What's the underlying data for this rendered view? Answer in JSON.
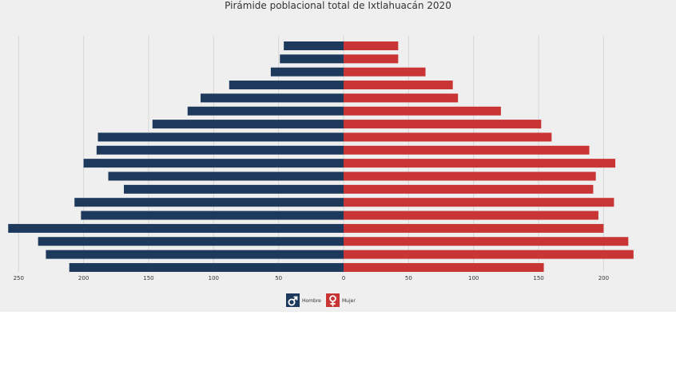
{
  "chart_data": {
    "type": "bar",
    "orientation": "horizontal-diverging",
    "title": "Pirámide poblacional total de Ixtlahuacán 2020",
    "xlim": [
      -260,
      230
    ],
    "x_ticks": [
      -250,
      -200,
      -150,
      -100,
      -50,
      0,
      50,
      100,
      150,
      200
    ],
    "x_tick_labels": [
      "250",
      "200",
      "150",
      "100",
      "50",
      "0",
      "50",
      "100",
      "150",
      "200"
    ],
    "grid": true,
    "legend_position": "bottom",
    "series": [
      {
        "name": "Hombre",
        "color": "#1d3a5c",
        "icon": "male-symbol-icon",
        "values": [
          46,
          49,
          56,
          88,
          110,
          120,
          147,
          189,
          190,
          200,
          181,
          169,
          207,
          202,
          258,
          235,
          229,
          211
        ]
      },
      {
        "name": "Mujer",
        "color": "#c93434",
        "icon": "female-symbol-icon",
        "values": [
          42,
          42,
          63,
          84,
          88,
          121,
          152,
          160,
          189,
          209,
          194,
          192,
          208,
          196,
          200,
          219,
          223,
          154
        ]
      }
    ]
  }
}
